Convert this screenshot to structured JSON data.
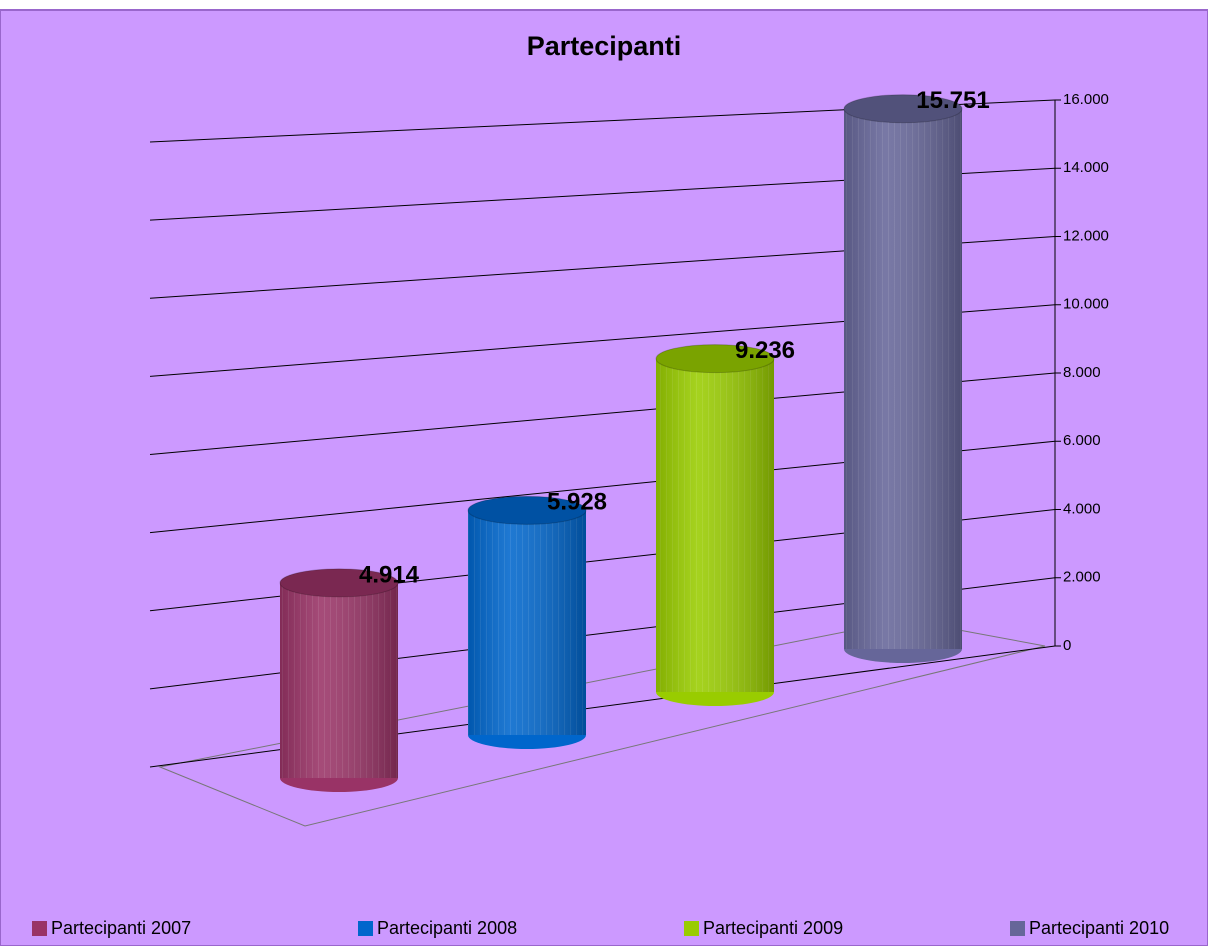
{
  "chart_data": {
    "type": "bar",
    "title": "Partecipanti",
    "series": [
      {
        "name": "Partecipanti 2007",
        "color": "#993366",
        "values": [
          4914
        ],
        "value_labels": [
          "4.914"
        ]
      },
      {
        "name": "Partecipanti 2008",
        "color": "#0066cc",
        "values": [
          5928
        ],
        "value_labels": [
          "5.928"
        ]
      },
      {
        "name": "Partecipanti 2009",
        "color": "#99cc00",
        "values": [
          9236
        ],
        "value_labels": [
          "9.236"
        ]
      },
      {
        "name": "Partecipanti 2010",
        "color": "#666699",
        "values": [
          15751
        ],
        "value_labels": [
          "15.751"
        ]
      }
    ],
    "ylim": [
      0,
      16000
    ],
    "yticks": [
      0,
      {
        "value": 2000,
        "label": "2.000"
      },
      {
        "value": 4000,
        "label": "4.000"
      },
      {
        "value": 6000,
        "label": "6.000"
      },
      {
        "value": 8000,
        "label": "8.000"
      },
      {
        "value": 10000,
        "label": "10.000"
      },
      {
        "value": 12000,
        "label": "12.000"
      },
      {
        "value": 14000,
        "label": "14.000"
      },
      {
        "value": 16000,
        "label": "16.000"
      }
    ],
    "grid": true,
    "legend": "bottom"
  }
}
